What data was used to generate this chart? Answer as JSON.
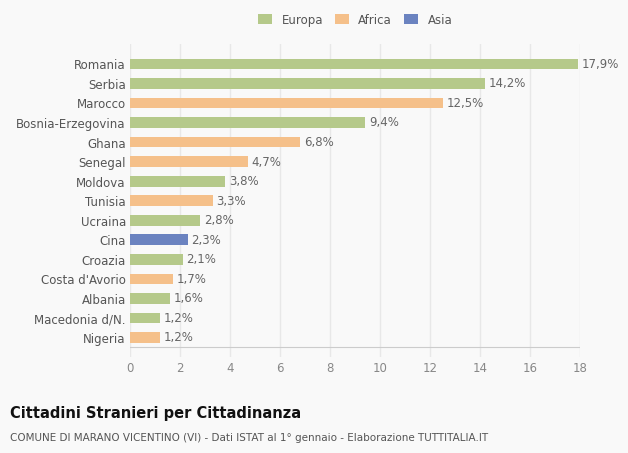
{
  "countries": [
    "Nigeria",
    "Macedonia d/N.",
    "Albania",
    "Costa d'Avorio",
    "Croazia",
    "Cina",
    "Ucraina",
    "Tunisia",
    "Moldova",
    "Senegal",
    "Ghana",
    "Bosnia-Erzegovina",
    "Marocco",
    "Serbia",
    "Romania"
  ],
  "values": [
    1.2,
    1.2,
    1.6,
    1.7,
    2.1,
    2.3,
    2.8,
    3.3,
    3.8,
    4.7,
    6.8,
    9.4,
    12.5,
    14.2,
    17.9
  ],
  "labels": [
    "1,2%",
    "1,2%",
    "1,6%",
    "1,7%",
    "2,1%",
    "2,3%",
    "2,8%",
    "3,3%",
    "3,8%",
    "4,7%",
    "6,8%",
    "9,4%",
    "12,5%",
    "14,2%",
    "17,9%"
  ],
  "continents": [
    "Africa",
    "Europa",
    "Europa",
    "Africa",
    "Europa",
    "Asia",
    "Europa",
    "Africa",
    "Europa",
    "Africa",
    "Africa",
    "Europa",
    "Africa",
    "Europa",
    "Europa"
  ],
  "colors": {
    "Europa": "#b5c98a",
    "Africa": "#f5c08a",
    "Asia": "#6b83c0"
  },
  "legend_labels": [
    "Europa",
    "Africa",
    "Asia"
  ],
  "legend_colors": [
    "#b5c98a",
    "#f5c08a",
    "#6b83c0"
  ],
  "title": "Cittadini Stranieri per Cittadinanza",
  "subtitle": "COMUNE DI MARANO VICENTINO (VI) - Dati ISTAT al 1° gennaio - Elaborazione TUTTITALIA.IT",
  "xlim": [
    0,
    18
  ],
  "xticks": [
    0,
    2,
    4,
    6,
    8,
    10,
    12,
    14,
    16,
    18
  ],
  "background_color": "#f9f9f9",
  "grid_color": "#e8e8e8",
  "bar_height": 0.55,
  "label_fontsize": 8.5,
  "tick_fontsize": 8.5,
  "title_fontsize": 10.5,
  "subtitle_fontsize": 7.5
}
